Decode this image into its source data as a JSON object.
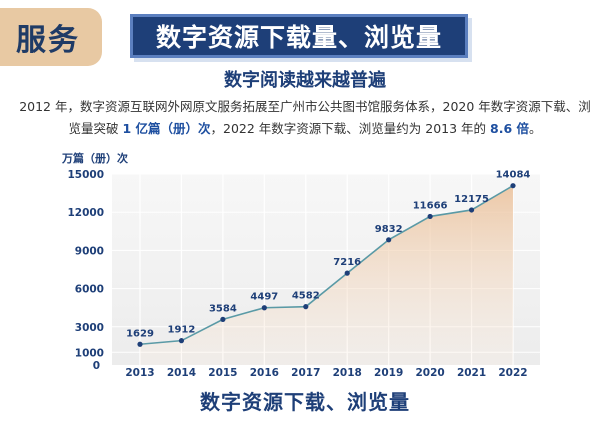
{
  "header": {
    "tag": "服务",
    "title": "数字资源下载量、浏览量"
  },
  "subtitle": "数字阅读越来越普遍",
  "description": {
    "part1": "2012 年，数字资源互联网外网原文服务拓展至广州市公共图书馆服务体系，2020 年数字资源下载、浏览量突破 ",
    "highlight1": "1 亿篇（册）次",
    "part2": "，2022 年数字资源下载、浏览量约为 2013 年的 ",
    "highlight2": "8.6 倍",
    "part3": "。"
  },
  "colors": {
    "accent": "#1e3f78",
    "tag_bg": "#e8c9a3",
    "line": "#5a9aa6",
    "point": "#1e3f78",
    "area_top": "#e9b98d",
    "highlight": "#1e4fa0"
  },
  "chart_data": {
    "type": "area",
    "title": "数字资源下载、浏览量",
    "ylabel": "万篇（册）次",
    "categories": [
      "2013",
      "2014",
      "2015",
      "2016",
      "2017",
      "2018",
      "2019",
      "2020",
      "2021",
      "2022"
    ],
    "values": [
      1629,
      1912,
      3584,
      4497,
      4582,
      7216,
      9832,
      11666,
      12175,
      14084
    ],
    "yticks": [
      0,
      1000,
      3000,
      6000,
      9000,
      12000,
      15000
    ],
    "ylim": [
      0,
      15000
    ],
    "grid": true,
    "data_labels": true
  }
}
